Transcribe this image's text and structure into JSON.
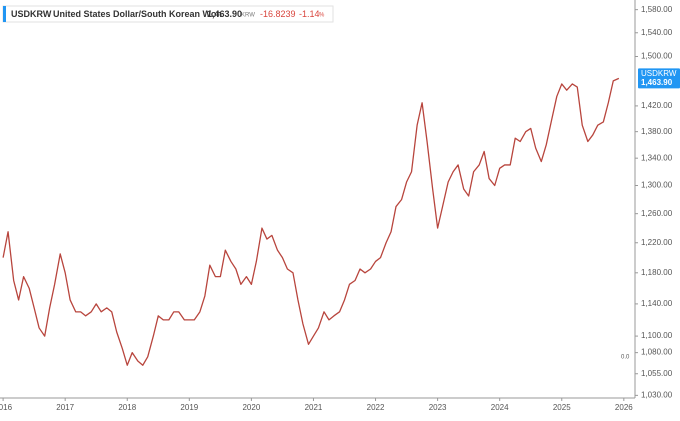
{
  "header": {
    "symbol": "USDKRW",
    "name": "United States Dollar/South Korean Won",
    "price": "1,463.90",
    "currency": "KRW",
    "change": "-16.8239",
    "change_pct": "-1.14",
    "change_pct_unit": "%"
  },
  "marker_label": "0.0",
  "chart_data": {
    "type": "line",
    "log_scale": true,
    "grid": false,
    "xlim": [
      2015.95,
      2026.18
    ],
    "xticks": [
      2016,
      2017,
      2018,
      2019,
      2020,
      2021,
      2022,
      2023,
      2024,
      2025,
      2026
    ],
    "ylim": [
      1027,
      1597
    ],
    "yticks": [
      {
        "value": 1030,
        "label": "1,030.00"
      },
      {
        "value": 1055,
        "label": "1,055.00"
      },
      {
        "value": 1080,
        "label": "1,080.00"
      },
      {
        "value": 1100,
        "label": "1,100.00"
      },
      {
        "value": 1140,
        "label": "1,140.00"
      },
      {
        "value": 1180,
        "label": "1,180.00"
      },
      {
        "value": 1220,
        "label": "1,220.00"
      },
      {
        "value": 1260,
        "label": "1,260.00"
      },
      {
        "value": 1300,
        "label": "1,300.00"
      },
      {
        "value": 1340,
        "label": "1,340.00"
      },
      {
        "value": 1380,
        "label": "1,380.00"
      },
      {
        "value": 1420,
        "label": "1,420.00"
      },
      {
        "value": 1500,
        "label": "1,500.00"
      },
      {
        "value": 1540,
        "label": "1,540.00"
      },
      {
        "value": 1580,
        "label": "1,580.00"
      }
    ],
    "x": [
      2016.0,
      2016.08,
      2016.17,
      2016.25,
      2016.33,
      2016.42,
      2016.5,
      2016.58,
      2016.67,
      2016.75,
      2016.83,
      2016.92,
      2017.0,
      2017.08,
      2017.17,
      2017.25,
      2017.33,
      2017.42,
      2017.5,
      2017.58,
      2017.67,
      2017.75,
      2017.83,
      2017.92,
      2018.0,
      2018.08,
      2018.17,
      2018.25,
      2018.33,
      2018.42,
      2018.5,
      2018.58,
      2018.67,
      2018.75,
      2018.83,
      2018.92,
      2019.0,
      2019.08,
      2019.17,
      2019.25,
      2019.33,
      2019.42,
      2019.5,
      2019.58,
      2019.67,
      2019.75,
      2019.83,
      2019.92,
      2020.0,
      2020.08,
      2020.17,
      2020.25,
      2020.33,
      2020.42,
      2020.5,
      2020.58,
      2020.67,
      2020.75,
      2020.83,
      2020.92,
      2021.0,
      2021.08,
      2021.17,
      2021.25,
      2021.33,
      2021.42,
      2021.5,
      2021.58,
      2021.67,
      2021.75,
      2021.83,
      2021.92,
      2022.0,
      2022.08,
      2022.17,
      2022.25,
      2022.33,
      2022.42,
      2022.5,
      2022.58,
      2022.67,
      2022.75,
      2022.83,
      2022.92,
      2023.0,
      2023.08,
      2023.17,
      2023.25,
      2023.33,
      2023.42,
      2023.5,
      2023.58,
      2023.67,
      2023.75,
      2023.83,
      2023.92,
      2024.0,
      2024.08,
      2024.17,
      2024.25,
      2024.33,
      2024.42,
      2024.5,
      2024.58,
      2024.67,
      2024.75,
      2024.83,
      2024.92,
      2025.0,
      2025.08,
      2025.17,
      2025.25,
      2025.33,
      2025.42,
      2025.5,
      2025.58,
      2025.67,
      2025.75,
      2025.83,
      2025.92
    ],
    "series": [
      {
        "name": "USDKRW",
        "color": "#b8453d",
        "values": [
          1200,
          1235,
          1170,
          1145,
          1175,
          1160,
          1135,
          1110,
          1100,
          1135,
          1165,
          1205,
          1180,
          1145,
          1130,
          1130,
          1125,
          1130,
          1140,
          1130,
          1135,
          1130,
          1105,
          1085,
          1065,
          1080,
          1070,
          1065,
          1075,
          1100,
          1125,
          1120,
          1120,
          1130,
          1130,
          1120,
          1120,
          1120,
          1130,
          1150,
          1190,
          1175,
          1175,
          1210,
          1195,
          1185,
          1165,
          1175,
          1165,
          1195,
          1240,
          1225,
          1230,
          1210,
          1200,
          1185,
          1180,
          1145,
          1115,
          1090,
          1100,
          1110,
          1130,
          1120,
          1125,
          1130,
          1145,
          1165,
          1170,
          1185,
          1180,
          1185,
          1195,
          1200,
          1220,
          1235,
          1270,
          1280,
          1305,
          1320,
          1390,
          1425,
          1365,
          1295,
          1240,
          1270,
          1305,
          1320,
          1330,
          1295,
          1285,
          1320,
          1330,
          1350,
          1310,
          1300,
          1325,
          1330,
          1330,
          1370,
          1365,
          1380,
          1385,
          1355,
          1335,
          1360,
          1395,
          1435,
          1455,
          1445,
          1455,
          1450,
          1390,
          1365,
          1375,
          1390,
          1395,
          1425,
          1460,
          1464
        ]
      }
    ]
  }
}
